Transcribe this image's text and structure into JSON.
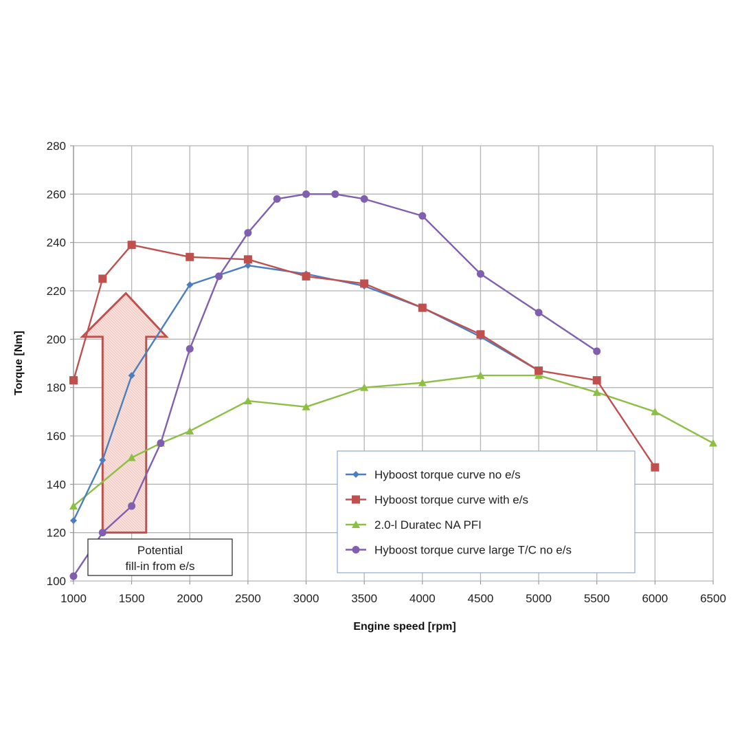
{
  "chart_data": {
    "type": "line",
    "title": "",
    "xlabel": "Engine speed [rpm]",
    "ylabel": "Torque [Nm]",
    "xlim": [
      1000,
      6500
    ],
    "ylim": [
      100,
      280
    ],
    "x_ticks": [
      1000,
      1500,
      2000,
      2500,
      3000,
      3500,
      4000,
      4500,
      5000,
      5500,
      6000,
      6500
    ],
    "y_ticks": [
      100,
      120,
      140,
      160,
      180,
      200,
      220,
      240,
      260,
      280
    ],
    "grid": true,
    "legend_position": "lower-right inside",
    "series": [
      {
        "name": "Hyboost torque curve no e/s",
        "color": "#4a7ebf",
        "marker": "diamond",
        "x": [
          1000,
          1250,
          1500,
          2000,
          2500,
          3000,
          3500,
          4000,
          4500,
          5000
        ],
        "values": [
          125,
          150,
          185,
          222.5,
          230.5,
          227,
          222,
          213,
          201,
          187
        ]
      },
      {
        "name": "Hyboost torque curve with e/s",
        "color": "#c0504d",
        "marker": "square",
        "x": [
          1000,
          1250,
          1500,
          2000,
          2500,
          3000,
          3500,
          4000,
          4500,
          5000,
          5500,
          6000
        ],
        "values": [
          183,
          225,
          239,
          234,
          233,
          226,
          223,
          213,
          202,
          187,
          183,
          147
        ]
      },
      {
        "name": "2.0-l Duratec NA PFI",
        "color": "#8cbf44",
        "marker": "triangle",
        "x": [
          1000,
          1500,
          1750,
          2000,
          2500,
          3000,
          3500,
          4000,
          4500,
          5000,
          5500,
          6000,
          6500
        ],
        "values": [
          131,
          151,
          157,
          162,
          174.5,
          172,
          180,
          182,
          185,
          185,
          178,
          170,
          157
        ]
      },
      {
        "name": "Hyboost torque curve large T/C no e/s",
        "color": "#7f5fae",
        "marker": "circle",
        "x": [
          1000,
          1250,
          1500,
          1750,
          2000,
          2250,
          2500,
          2750,
          3000,
          3250,
          3500,
          4000,
          4500,
          5000,
          5500
        ],
        "values": [
          102,
          120,
          131,
          157,
          196,
          226,
          244,
          258,
          260,
          260,
          258,
          251,
          227,
          211,
          195
        ]
      }
    ],
    "annotations": [
      {
        "type": "up-arrow",
        "x_range": [
          1250,
          1625
        ],
        "shaft_y_range": [
          120,
          201
        ],
        "head_x_range": [
          1075,
          1800
        ],
        "tip": [
          1450,
          219
        ],
        "color": "#c0504d"
      },
      {
        "type": "textbox",
        "lines": [
          "Potential",
          "fill-in from e/s"
        ]
      }
    ]
  },
  "axes": {
    "x_title": "Engine speed [rpm]",
    "y_title": "Torque [Nm]"
  },
  "legend": {
    "items": [
      "Hyboost torque curve no e/s",
      "Hyboost torque curve with e/s",
      "2.0-l Duratec NA PFI",
      "Hyboost torque curve large T/C no e/s"
    ]
  },
  "annotation": {
    "line1": "Potential",
    "line2": "fill-in from e/s"
  }
}
